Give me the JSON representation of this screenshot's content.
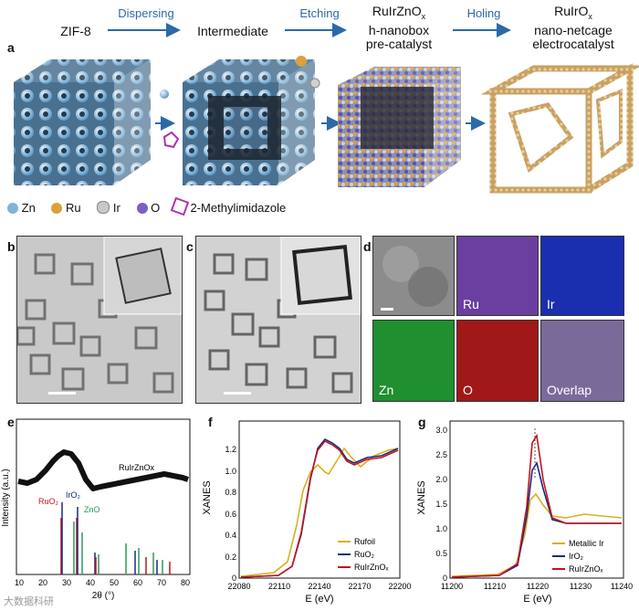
{
  "top": {
    "stages": [
      "ZIF-8",
      "Intermediate",
      "RuIrZnOx h-nanobox pre-catalyst",
      "RuIrOx nano-netcage electrocatalyst"
    ],
    "stage_lines": {
      "zif": "ZIF-8",
      "intermediate": "Intermediate",
      "ruirznox_1": "RuIrZnO",
      "ruirznox_1_sub": "x",
      "ruirznox_2": "h-nanobox",
      "ruirznox_3": "pre-catalyst",
      "ruirox_1": "RuIrO",
      "ruirox_1_sub": "x",
      "ruirox_2": "nano-netcage",
      "ruirox_3": "electrocatalyst"
    },
    "steps": {
      "dispersing": "Dispersing",
      "etching": "Etching",
      "holing": "Holing"
    },
    "arrow_color": "#2a6aa8"
  },
  "panel_labels": {
    "a": "a",
    "b": "b",
    "c": "c",
    "d": "d",
    "e": "e",
    "f": "f",
    "g": "g"
  },
  "element_legend": [
    {
      "symbol": "Zn",
      "color": "#7fb3d9"
    },
    {
      "symbol": "Ru",
      "color": "#d9a23a"
    },
    {
      "symbol": "Ir",
      "color": "#c8c8c8"
    },
    {
      "symbol": "O",
      "color": "#7d5fc4"
    },
    {
      "symbol": "2-Methylimidazole",
      "color": "#b030b0"
    }
  ],
  "eds_maps": {
    "ru": "Ru",
    "ir": "Ir",
    "zn": "Zn",
    "o": "O",
    "overlap": "Overlap"
  },
  "eds_colors": {
    "ru": "#6a3fa0",
    "ir": "#1a2fb0",
    "zn": "#1f8f2f",
    "o": "#a01818",
    "overlap": "#7a6a9a"
  },
  "xrd": {
    "ylabel": "Intensity (a.u.)",
    "xlabel": "2θ (°)",
    "sample_label": "RuIrZnOx",
    "ref_labels": {
      "ruo2": "RuO₂",
      "iro2": "IrO₂",
      "zno": "ZnO"
    },
    "ref_colors": {
      "ruo2": "#c0141e",
      "iro2": "#1a2a80",
      "zno": "#2a9a5a"
    },
    "x_ticks": [
      "10",
      "20",
      "30",
      "40",
      "50",
      "60",
      "70",
      "80"
    ],
    "xlim": [
      10,
      80
    ]
  },
  "xanes_ru": {
    "ylabel": "XANES",
    "xlabel": "E (eV)",
    "x_ticks": [
      "22080",
      "22110",
      "22140",
      "22170",
      "22200"
    ],
    "y_ticks": [
      "0",
      "0.2",
      "0.4",
      "0.6",
      "0.8",
      "1.0",
      "1.2"
    ],
    "legend": [
      "Rufoil",
      "RuO₂",
      "RuIrZnOₓ"
    ],
    "colors": [
      "#d8b020",
      "#1a2a80",
      "#c0141e"
    ]
  },
  "xanes_ir": {
    "ylabel": "XANES",
    "xlabel": "E (eV)",
    "x_ticks": [
      "11200",
      "11210",
      "11220",
      "11230",
      "11240"
    ],
    "y_ticks": [
      "0",
      "0.5",
      "1.0",
      "1.5",
      "2.0",
      "2.5",
      "3.0"
    ],
    "legend": [
      "Metallic Ir",
      "IrO₂",
      "RuIrZnOₓ"
    ],
    "colors": [
      "#d8b020",
      "#1a2a80",
      "#c0141e"
    ]
  },
  "watermark": "大数据科研"
}
